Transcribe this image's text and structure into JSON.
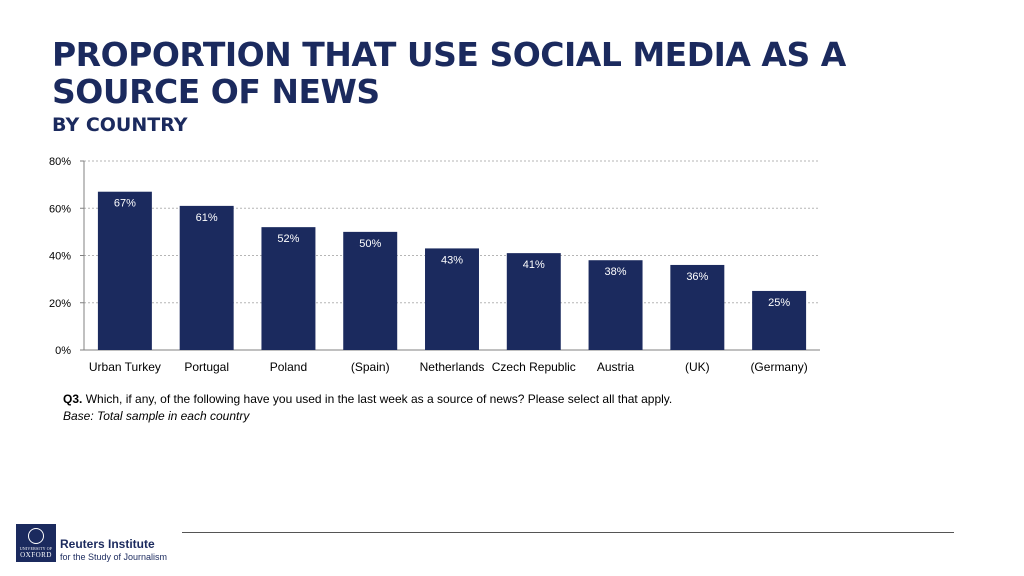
{
  "slide": {
    "title": "PROPORTION THAT USE SOCIAL MEDIA AS A SOURCE OF NEWS",
    "subtitle": "BY COUNTRY",
    "question_label": "Q3.",
    "question_text": "Which, if any, of the following have you used in the last week as a source of news? Please select all that apply.",
    "base_text": "Base: Total sample in each country"
  },
  "footer": {
    "logo_university_line": "UNIVERSITY OF",
    "logo_name": "OXFORD",
    "org_name": "Reuters Institute",
    "org_subtitle": "for the Study of Journalism"
  },
  "chart_data": {
    "type": "bar",
    "categories": [
      "Urban Turkey",
      "Portugal",
      "Poland",
      "(Spain)",
      "Netherlands",
      "Czech Republic",
      "Austria",
      "(UK)",
      "(Germany)"
    ],
    "values": [
      67,
      61,
      52,
      50,
      43,
      41,
      38,
      36,
      25
    ],
    "data_labels": [
      "67%",
      "61%",
      "52%",
      "50%",
      "43%",
      "41%",
      "38%",
      "36%",
      "25%"
    ],
    "ylim": [
      0,
      80
    ],
    "yticks": [
      0,
      20,
      40,
      60,
      80
    ],
    "ytick_labels": [
      "0%",
      "20%",
      "40%",
      "60%",
      "80%"
    ],
    "grid": true,
    "legend": "none",
    "bar_color": "#1b2a5e",
    "label_color_inside": "#ffffff",
    "label_color_outside": "#000000"
  },
  "colors": {
    "accent": "#1b2a5e",
    "gridline": "#b5b5b5"
  }
}
